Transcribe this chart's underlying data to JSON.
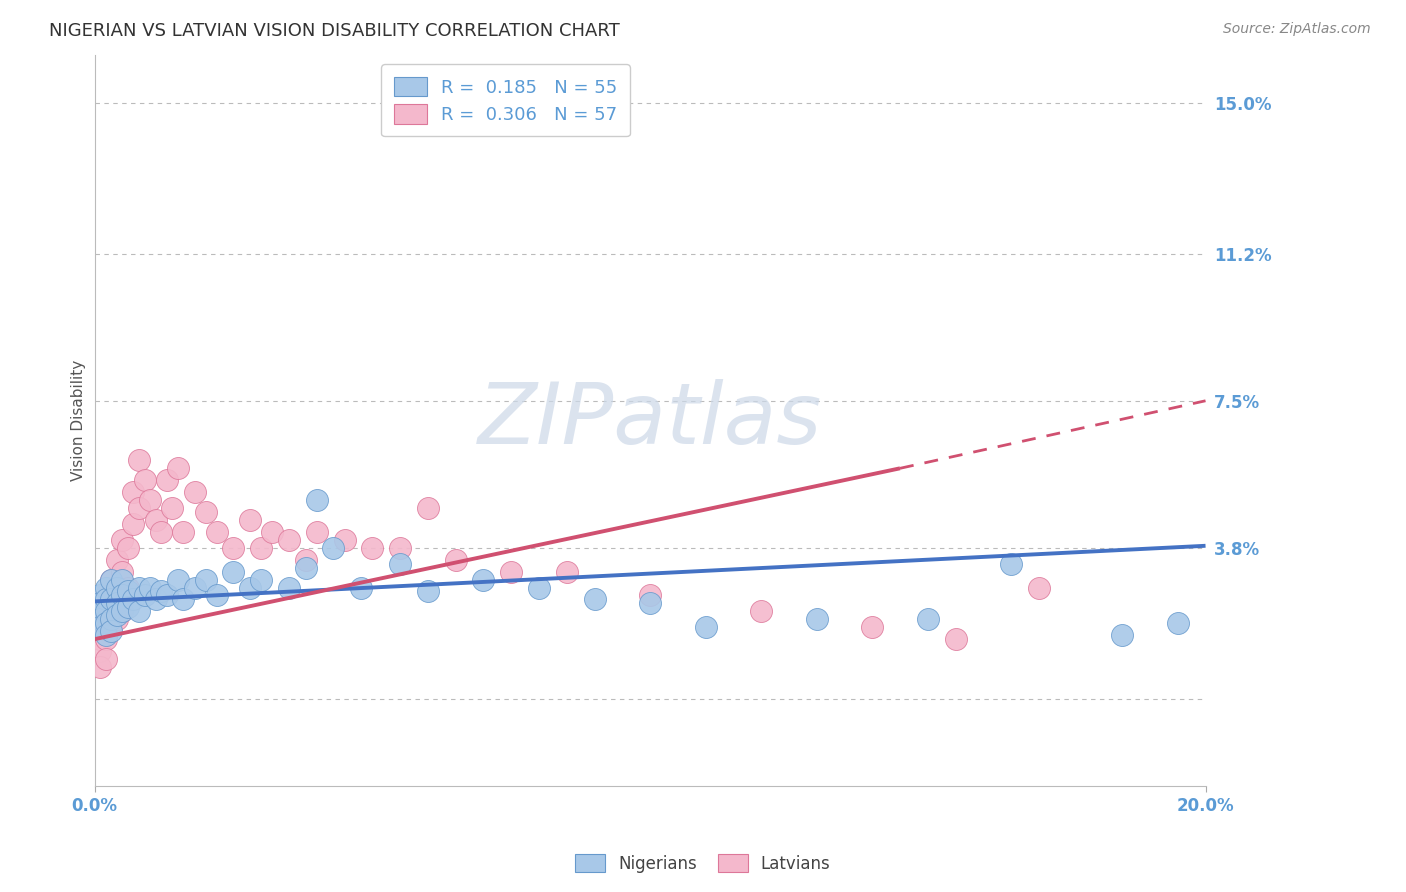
{
  "title": "NIGERIAN VS LATVIAN VISION DISABILITY CORRELATION CHART",
  "source": "Source: ZipAtlas.com",
  "ylabel": "Vision Disability",
  "xlim": [
    0.0,
    0.2
  ],
  "ylim": [
    -0.022,
    0.162
  ],
  "yticks": [
    0.0,
    0.038,
    0.075,
    0.112,
    0.15
  ],
  "ytick_labels": [
    "",
    "3.8%",
    "7.5%",
    "11.2%",
    "15.0%"
  ],
  "xtick_labels": [
    "0.0%",
    "20.0%"
  ],
  "legend_entries": [
    {
      "label": "R =  0.185   N = 55",
      "color": "#a8c4e0"
    },
    {
      "label": "R =  0.306   N = 57",
      "color": "#f4a8b8"
    }
  ],
  "nigerian_color": "#a8c8e8",
  "nigerian_edge": "#6699cc",
  "latvian_color": "#f4b8cc",
  "latvian_edge": "#dd7799",
  "nig_line_color": "#4472c4",
  "lat_line_color": "#d05070",
  "nig_line": {
    "x0": 0.0,
    "y0": 0.0245,
    "x1": 0.2,
    "y1": 0.0385
  },
  "lat_line": {
    "x0": 0.0,
    "y0": 0.015,
    "x1": 0.145,
    "y1": 0.058,
    "x1d": 0.2,
    "y1d": 0.075
  },
  "watermark_color": "#ccd8e8",
  "grid_color": "#bbbbbb",
  "axis_color": "#5b9bd5",
  "title_color": "#333333",
  "background": "#ffffff",
  "nigerian_x": [
    0.001,
    0.001,
    0.001,
    0.001,
    0.001,
    0.002,
    0.002,
    0.002,
    0.002,
    0.002,
    0.003,
    0.003,
    0.003,
    0.003,
    0.004,
    0.004,
    0.004,
    0.005,
    0.005,
    0.005,
    0.006,
    0.006,
    0.007,
    0.008,
    0.008,
    0.009,
    0.01,
    0.011,
    0.012,
    0.013,
    0.015,
    0.016,
    0.018,
    0.02,
    0.022,
    0.025,
    0.028,
    0.03,
    0.035,
    0.038,
    0.04,
    0.043,
    0.048,
    0.055,
    0.06,
    0.07,
    0.08,
    0.09,
    0.1,
    0.11,
    0.13,
    0.15,
    0.165,
    0.185,
    0.195
  ],
  "nigerian_y": [
    0.026,
    0.024,
    0.022,
    0.02,
    0.018,
    0.028,
    0.025,
    0.022,
    0.019,
    0.016,
    0.03,
    0.025,
    0.02,
    0.017,
    0.028,
    0.024,
    0.021,
    0.03,
    0.026,
    0.022,
    0.027,
    0.023,
    0.025,
    0.028,
    0.022,
    0.026,
    0.028,
    0.025,
    0.027,
    0.026,
    0.03,
    0.025,
    0.028,
    0.03,
    0.026,
    0.032,
    0.028,
    0.03,
    0.028,
    0.033,
    0.05,
    0.038,
    0.028,
    0.034,
    0.027,
    0.03,
    0.028,
    0.025,
    0.024,
    0.018,
    0.02,
    0.02,
    0.034,
    0.016,
    0.019
  ],
  "latvian_x": [
    0.001,
    0.001,
    0.001,
    0.001,
    0.001,
    0.001,
    0.002,
    0.002,
    0.002,
    0.002,
    0.002,
    0.003,
    0.003,
    0.003,
    0.003,
    0.004,
    0.004,
    0.004,
    0.005,
    0.005,
    0.005,
    0.006,
    0.006,
    0.007,
    0.007,
    0.008,
    0.008,
    0.009,
    0.01,
    0.011,
    0.012,
    0.013,
    0.014,
    0.015,
    0.016,
    0.018,
    0.02,
    0.022,
    0.025,
    0.028,
    0.03,
    0.032,
    0.035,
    0.038,
    0.04,
    0.045,
    0.05,
    0.055,
    0.06,
    0.065,
    0.075,
    0.085,
    0.1,
    0.12,
    0.14,
    0.155,
    0.17
  ],
  "latvian_y": [
    0.022,
    0.02,
    0.017,
    0.015,
    0.012,
    0.008,
    0.026,
    0.022,
    0.018,
    0.015,
    0.01,
    0.03,
    0.026,
    0.022,
    0.018,
    0.035,
    0.028,
    0.02,
    0.04,
    0.032,
    0.022,
    0.038,
    0.028,
    0.052,
    0.044,
    0.06,
    0.048,
    0.055,
    0.05,
    0.045,
    0.042,
    0.055,
    0.048,
    0.058,
    0.042,
    0.052,
    0.047,
    0.042,
    0.038,
    0.045,
    0.038,
    0.042,
    0.04,
    0.035,
    0.042,
    0.04,
    0.038,
    0.038,
    0.048,
    0.035,
    0.032,
    0.032,
    0.026,
    0.022,
    0.018,
    0.015,
    0.028
  ]
}
